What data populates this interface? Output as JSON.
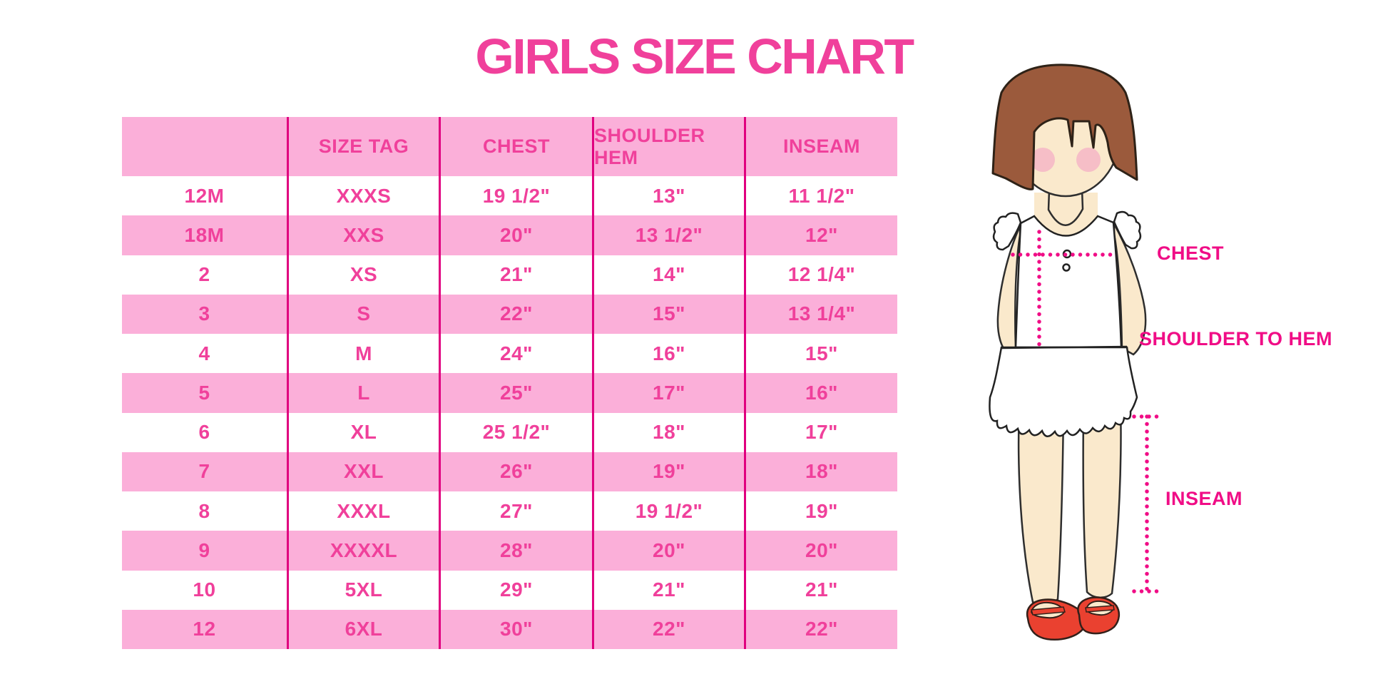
{
  "page": {
    "title": "GIRLS SIZE CHART"
  },
  "chart_data": {
    "type": "table",
    "title": "GIRLS SIZE CHART",
    "columns": [
      "",
      "SIZE TAG",
      "CHEST",
      "SHOULDER HEM",
      "INSEAM"
    ],
    "rows": [
      [
        "12M",
        "XXXS",
        "19 1/2\"",
        "13\"",
        "11 1/2\""
      ],
      [
        "18M",
        "XXS",
        "20\"",
        "13 1/2\"",
        "12\""
      ],
      [
        "2",
        "XS",
        "21\"",
        "14\"",
        "12 1/4\""
      ],
      [
        "3",
        "S",
        "22\"",
        "15\"",
        "13 1/4\""
      ],
      [
        "4",
        "M",
        "24\"",
        "16\"",
        "15\""
      ],
      [
        "5",
        "L",
        "25\"",
        "17\"",
        "16\""
      ],
      [
        "6",
        "XL",
        "25 1/2\"",
        "18\"",
        "17\""
      ],
      [
        "7",
        "XXL",
        "26\"",
        "19\"",
        "18\""
      ],
      [
        "8",
        "XXXL",
        "27\"",
        "19 1/2\"",
        "19\""
      ],
      [
        "9",
        "XXXXL",
        "28\"",
        "20\"",
        "20\""
      ],
      [
        "10",
        "5XL",
        "29\"",
        "21\"",
        "21\""
      ],
      [
        "12",
        "6XL",
        "30\"",
        "22\"",
        "22\""
      ]
    ]
  },
  "diagram": {
    "labels": {
      "chest": "CHEST",
      "shoulder_to_hem": "SHOULDER TO HEM",
      "inseam": "INSEAM"
    }
  },
  "colors": {
    "title_pink": "#F0409B",
    "table_text_pink": "#F0409B",
    "row_pink": "#FBAFD9",
    "divider_magenta": "#E0007F",
    "label_magenta": "#F00D86",
    "hair_brown": "#9B5A3C",
    "skin": "#FAE9CC",
    "blush": "#F4AFC6",
    "shoe_red": "#EA4130",
    "background": "#FFFFFF"
  }
}
